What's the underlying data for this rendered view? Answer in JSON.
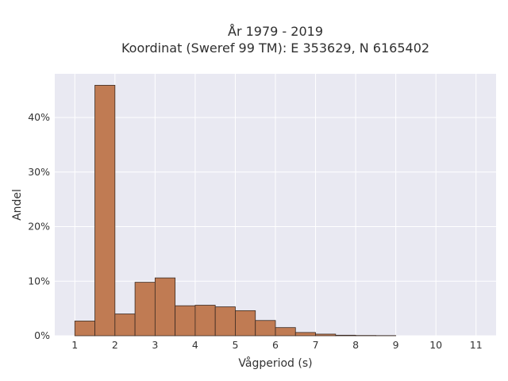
{
  "chart_data": {
    "type": "bar",
    "title": "År 1979 - 2019",
    "subtitle": "Koordinat (Sweref 99 TM): E 353629, N 6165402",
    "xlabel": "Vågperiod (s)",
    "ylabel": "Andel",
    "xlim": [
      0.5,
      11.5
    ],
    "ylim": [
      0,
      48
    ],
    "x_ticks": [
      1,
      2,
      3,
      4,
      5,
      6,
      7,
      8,
      9,
      10,
      11
    ],
    "y_ticks": [
      0,
      10,
      20,
      30,
      40
    ],
    "y_tick_suffix": "%",
    "bin_width": 0.5,
    "bins": [
      {
        "start": 1.0,
        "value": 2.7
      },
      {
        "start": 1.5,
        "value": 45.9
      },
      {
        "start": 2.0,
        "value": 4.0
      },
      {
        "start": 2.5,
        "value": 9.8
      },
      {
        "start": 3.0,
        "value": 10.6
      },
      {
        "start": 3.5,
        "value": 5.5
      },
      {
        "start": 4.0,
        "value": 5.6
      },
      {
        "start": 4.5,
        "value": 5.3
      },
      {
        "start": 5.0,
        "value": 4.6
      },
      {
        "start": 5.5,
        "value": 2.8
      },
      {
        "start": 6.0,
        "value": 1.5
      },
      {
        "start": 6.5,
        "value": 0.6
      },
      {
        "start": 7.0,
        "value": 0.3
      },
      {
        "start": 7.5,
        "value": 0.1
      },
      {
        "start": 8.0,
        "value": 0.05
      },
      {
        "start": 8.5,
        "value": 0.03
      }
    ],
    "grid": true,
    "colors": {
      "bar_fill": "#c07b53",
      "bar_stroke": "#3a2a22",
      "plot_background": "#e9e9f2",
      "grid": "#ffffff"
    }
  }
}
